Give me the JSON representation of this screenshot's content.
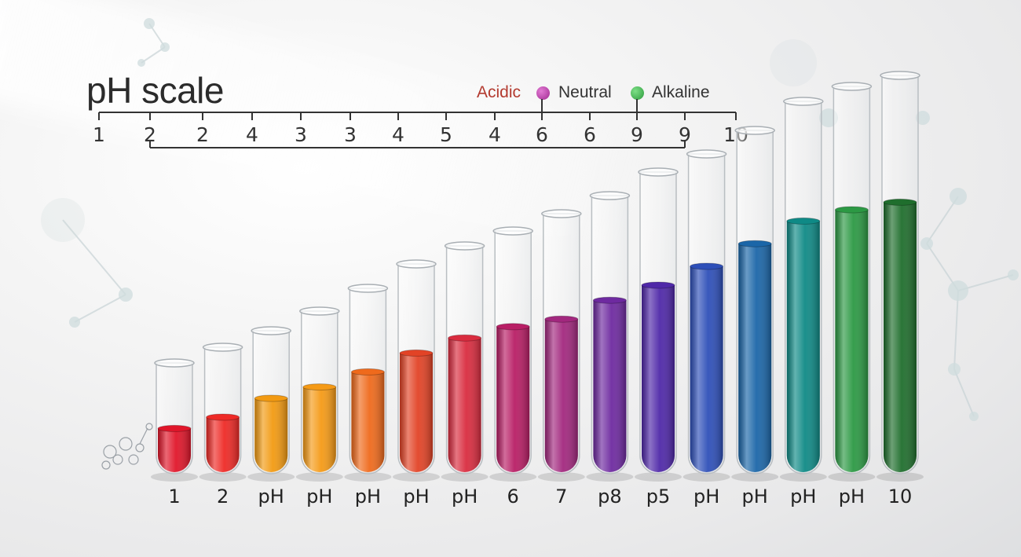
{
  "header": {
    "title": "pH scale"
  },
  "legend": {
    "acidic": {
      "label": "Acidic",
      "color": "#b33a2f"
    },
    "neutral": {
      "label": "Neutral",
      "color": "#b03aa0"
    },
    "alkaline": {
      "label": "Alkaline",
      "color": "#3aa84a"
    }
  },
  "scale": {
    "top_ticks": [
      "1",
      "2",
      "2",
      "4",
      "3",
      "3",
      "4",
      "5",
      "4",
      "6",
      "6",
      "9",
      "9",
      "10"
    ]
  },
  "tubes": [
    {
      "label": "1",
      "fill": 0.12,
      "color": "#e0162a"
    },
    {
      "label": "2",
      "fill": 0.15,
      "color": "#ee2a26"
    },
    {
      "label": "pH",
      "fill": 0.2,
      "color": "#f29a12"
    },
    {
      "label": "pH",
      "fill": 0.23,
      "color": "#f59a16"
    },
    {
      "label": "pH",
      "fill": 0.27,
      "color": "#ef6a1c"
    },
    {
      "label": "pH",
      "fill": 0.32,
      "color": "#e24326"
    },
    {
      "label": "pH",
      "fill": 0.36,
      "color": "#d92c3f"
    },
    {
      "label": "6",
      "fill": 0.39,
      "color": "#b81e65"
    },
    {
      "label": "7",
      "fill": 0.41,
      "color": "#a2287e"
    },
    {
      "label": "p8",
      "fill": 0.46,
      "color": "#6e2aa0"
    },
    {
      "label": "p5",
      "fill": 0.5,
      "color": "#4f28a8"
    },
    {
      "label": "pH",
      "fill": 0.55,
      "color": "#2e4fb8"
    },
    {
      "label": "pH",
      "fill": 0.61,
      "color": "#1b66a8"
    },
    {
      "label": "pH",
      "fill": 0.67,
      "color": "#0f8a86"
    },
    {
      "label": "pH",
      "fill": 0.7,
      "color": "#2c9944"
    },
    {
      "label": "10",
      "fill": 0.72,
      "color": "#1f6e2d"
    }
  ]
}
